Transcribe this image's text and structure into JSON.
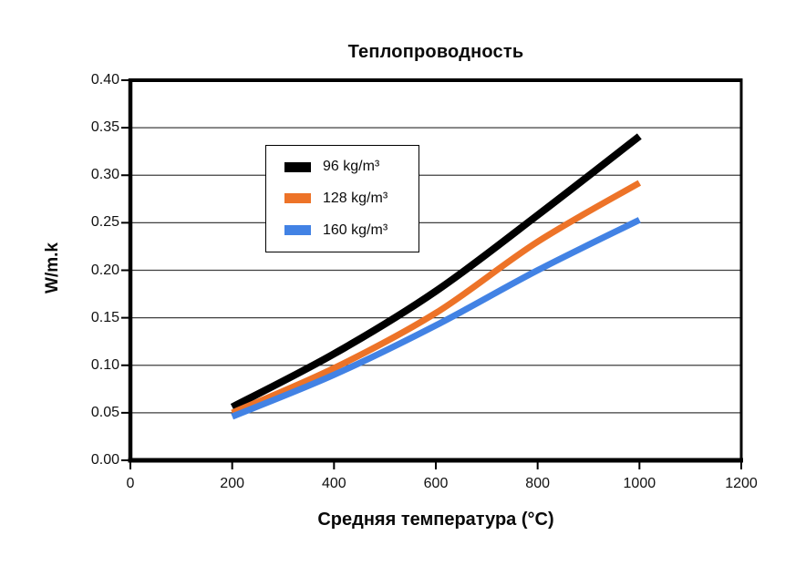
{
  "chart_data": {
    "type": "line",
    "title": "Теплопроводность",
    "xlabel": "Средняя температура (°C)",
    "ylabel": "W/m.k",
    "xlim": [
      0,
      1200
    ],
    "ylim": [
      0,
      0.4
    ],
    "x_ticks": [
      "0",
      "200",
      "400",
      "600",
      "800",
      "1000",
      "1200"
    ],
    "y_ticks": [
      "0.00",
      "0.05",
      "0.10",
      "0.15",
      "0.20",
      "0.25",
      "0.30",
      "0.35",
      "0.40"
    ],
    "grid": "horizontal-on",
    "grid_color": "#3f3f3f",
    "axis_color": "#000000",
    "legend_position": "upper-left-inside",
    "series": [
      {
        "name": "96 kg/m³",
        "color": "#000000",
        "line_width": 8,
        "x": [
          200,
          400,
          600,
          800,
          1000
        ],
        "values": [
          0.056,
          0.112,
          0.178,
          0.258,
          0.341
        ]
      },
      {
        "name": "128 kg/m³",
        "color": "#ED7328",
        "line_width": 7,
        "x": [
          200,
          400,
          600,
          800,
          1000
        ],
        "values": [
          0.05,
          0.097,
          0.155,
          0.23,
          0.292
        ]
      },
      {
        "name": "160 kg/m³",
        "color": "#4282E4",
        "line_width": 7,
        "x": [
          200,
          400,
          600,
          800,
          1000
        ],
        "values": [
          0.046,
          0.09,
          0.142,
          0.2,
          0.253
        ]
      }
    ]
  }
}
